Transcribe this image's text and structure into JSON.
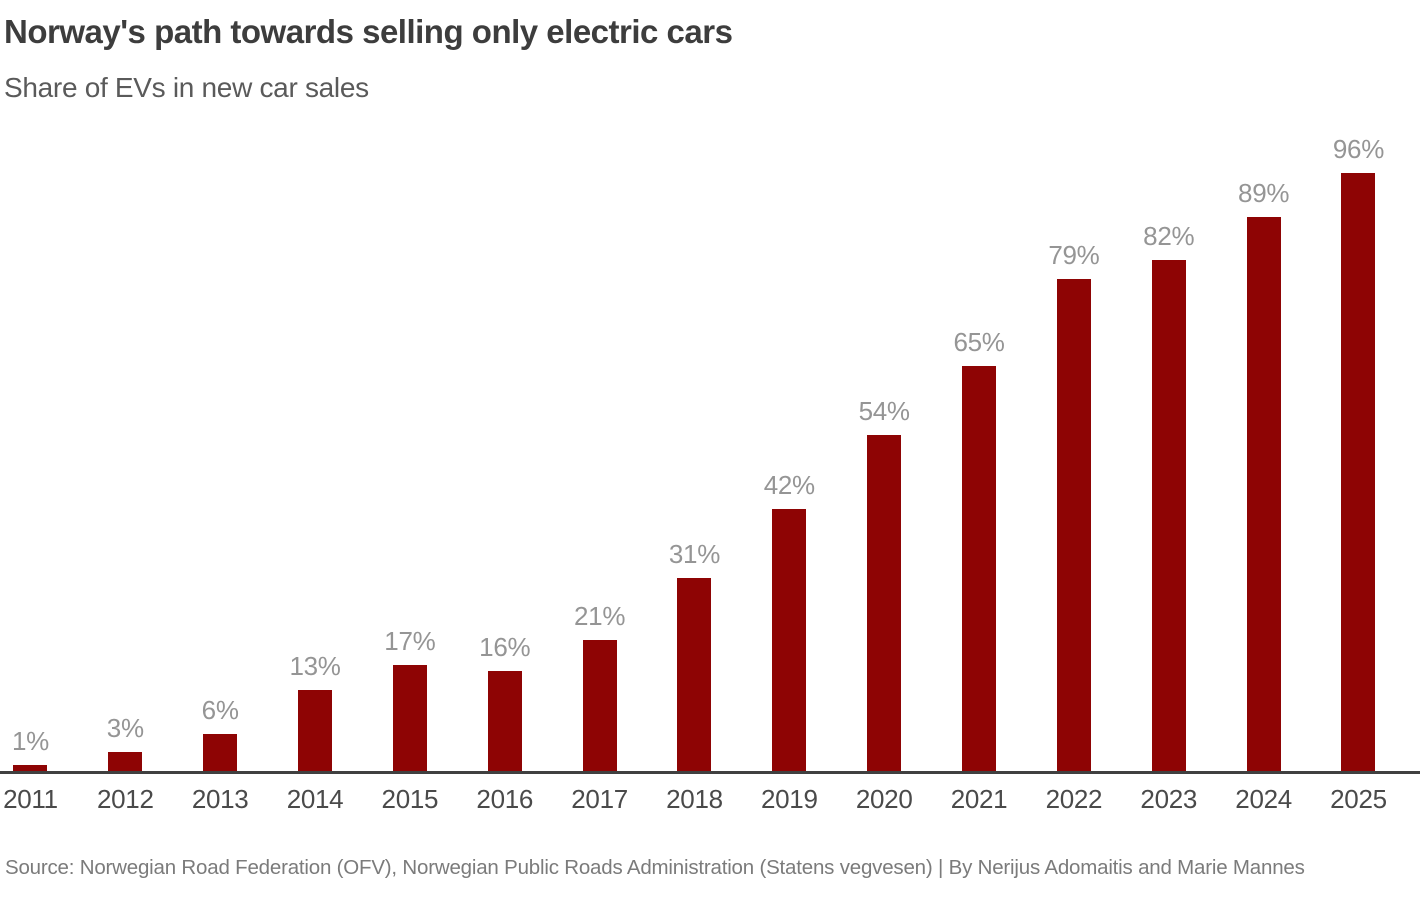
{
  "header": {
    "title": "Norway's path towards selling only electric cars",
    "subtitle": "Share of EVs in new car sales"
  },
  "chart_data": {
    "type": "bar",
    "title": "Norway's path towards selling only electric cars",
    "subtitle": "Share of EVs in new car sales",
    "categories": [
      "2011",
      "2012",
      "2013",
      "2014",
      "2015",
      "2016",
      "2017",
      "2018",
      "2019",
      "2020",
      "2021",
      "2022",
      "2023",
      "2024",
      "2025"
    ],
    "values": [
      1,
      3,
      6,
      13,
      17,
      16,
      21,
      31,
      42,
      54,
      65,
      79,
      82,
      89,
      96
    ],
    "value_labels": [
      "1%",
      "3%",
      "6%",
      "13%",
      "17%",
      "16%",
      "21%",
      "31%",
      "42%",
      "54%",
      "65%",
      "79%",
      "82%",
      "89%",
      "96%"
    ],
    "xlabel": "",
    "ylabel": "",
    "ylim": [
      0,
      100
    ],
    "grid": false,
    "legend": false,
    "y_axis_shown": false,
    "colors": {
      "bar": "#8e0404",
      "value_label": "#959595",
      "x_tick_label": "#4a4a4a",
      "axis_line": "#404040",
      "title": "#3d3d3d",
      "subtitle": "#5a5a5a",
      "source": "#7b7b7b",
      "background": "#ffffff"
    }
  },
  "footer": {
    "source": "Source: Norwegian Road Federation (OFV), Norwegian Public Roads Administration (Statens vegvesen)  | By Nerijus Adomaitis and Marie Mannes"
  }
}
